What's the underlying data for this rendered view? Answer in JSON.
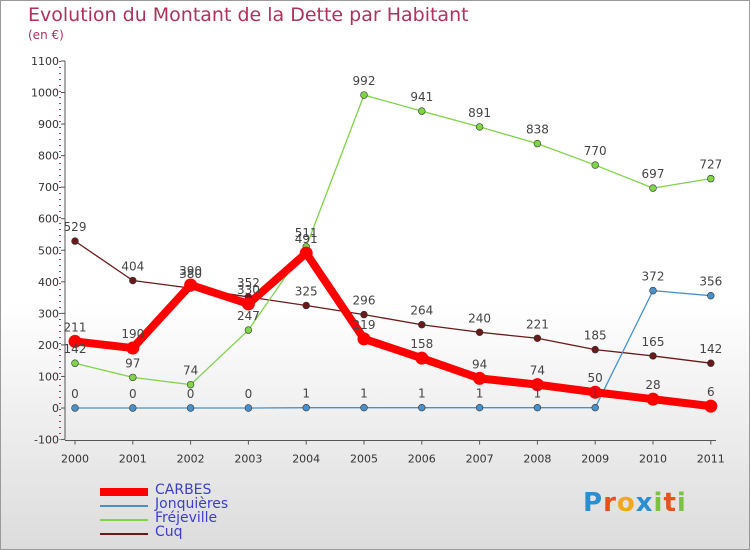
{
  "chart": {
    "title": "Evolution du Montant de la Dette par Habitant",
    "subtitle": "(en €)"
  },
  "chart_data": {
    "type": "line",
    "title": "Evolution du Montant de la Dette par Habitant",
    "subtitle": "(en €)",
    "xlabel": "",
    "ylabel": "",
    "x": [
      "2000",
      "2001",
      "2002",
      "2003",
      "2004",
      "2005",
      "2006",
      "2007",
      "2008",
      "2009",
      "2010",
      "2011"
    ],
    "ylim": [
      -100,
      1100
    ],
    "yticks": [
      -100,
      0,
      100,
      200,
      300,
      400,
      500,
      600,
      700,
      800,
      900,
      1000,
      1100
    ],
    "grid": false,
    "legend_position": "bottom-left",
    "series": [
      {
        "name": "CARBES",
        "color": "#ff0000",
        "values": [
          211,
          190,
          390,
          330,
          491,
          219,
          158,
          94,
          74,
          50,
          28,
          6
        ],
        "labels": [
          "211",
          "190",
          "390",
          "330",
          "491",
          "219",
          "158",
          "94",
          "74",
          "50",
          "28",
          "6"
        ]
      },
      {
        "name": "Jonquières",
        "color": "#4a90c8",
        "values": [
          0,
          0,
          0,
          0,
          1,
          1,
          1,
          1,
          1,
          1,
          372,
          356
        ],
        "labels": [
          "0",
          "0",
          "0",
          "0",
          "1",
          "1",
          "1",
          "1",
          "1",
          "1",
          "372",
          "356"
        ]
      },
      {
        "name": "Fréjeville",
        "color": "#7fd44a",
        "values": [
          142,
          97,
          74,
          247,
          511,
          992,
          941,
          891,
          838,
          770,
          697,
          727
        ],
        "labels": [
          "142",
          "97",
          "74",
          "247",
          "511",
          "992",
          "941",
          "891",
          "838",
          "770",
          "697",
          "727"
        ]
      },
      {
        "name": "Cuq",
        "color": "#6b1a1a",
        "values": [
          529,
          404,
          380,
          352,
          325,
          296,
          264,
          240,
          221,
          185,
          165,
          142
        ],
        "labels": [
          "529",
          "404",
          "380",
          "352",
          "325",
          "296",
          "264",
          "240",
          "221",
          "185",
          "165",
          "142"
        ]
      }
    ]
  },
  "logo": {
    "letters": [
      {
        "ch": "P",
        "color": "#2a8fd0"
      },
      {
        "ch": "r",
        "color": "#e8501c"
      },
      {
        "ch": "o",
        "color": "#f2a81c"
      },
      {
        "ch": "x",
        "color": "#2a8fd0"
      },
      {
        "ch": "i",
        "color": "#7cc242"
      },
      {
        "ch": "t",
        "color": "#e8501c"
      },
      {
        "ch": "i",
        "color": "#7cc242"
      }
    ]
  }
}
